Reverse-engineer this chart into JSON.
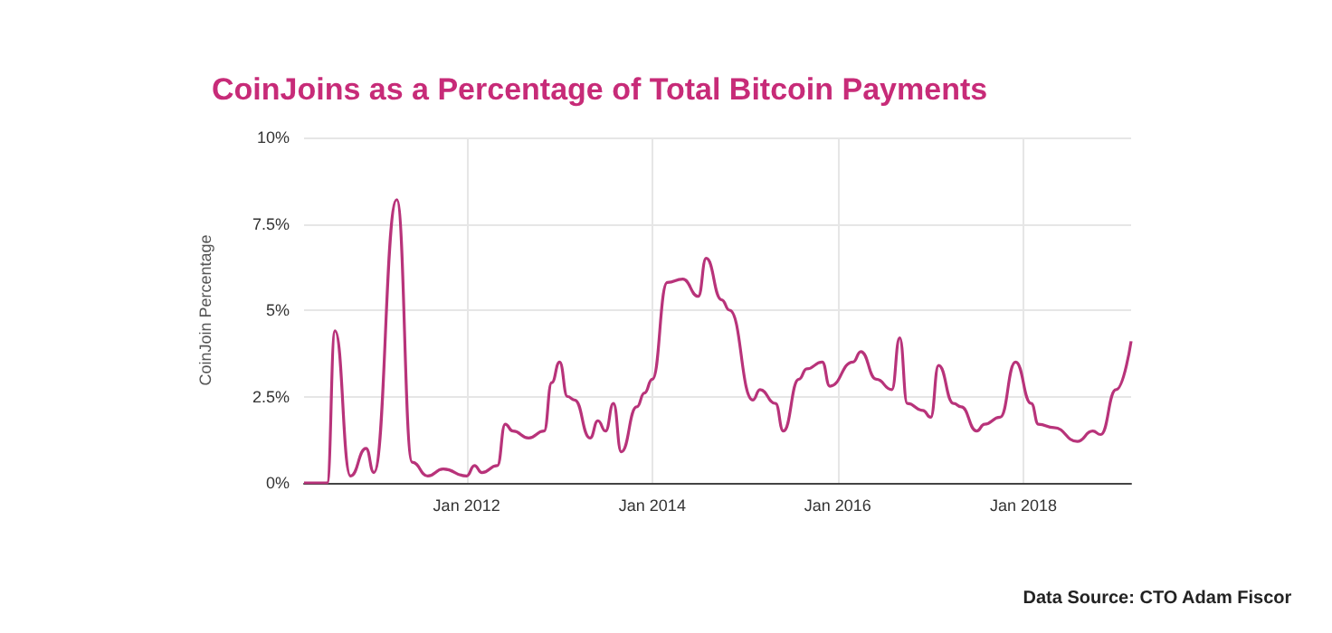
{
  "chart_data": {
    "type": "line",
    "title": "CoinJoins as a Percentage of Total Bitcoin Payments",
    "ylabel": "CoinJoin Percentage",
    "x": [
      "2010-04",
      "2010-07",
      "2010-08",
      "2010-10",
      "2010-12",
      "2011-01",
      "2011-04",
      "2011-06",
      "2011-08",
      "2011-10",
      "2012-01",
      "2012-02",
      "2012-03",
      "2012-05",
      "2012-06",
      "2012-07",
      "2012-09",
      "2012-11",
      "2012-12",
      "2013-01",
      "2013-02",
      "2013-03",
      "2013-05",
      "2013-06",
      "2013-07",
      "2013-08",
      "2013-09",
      "2013-11",
      "2013-12",
      "2014-01",
      "2014-03",
      "2014-05",
      "2014-07",
      "2014-08",
      "2014-10",
      "2014-11",
      "2015-02",
      "2015-03",
      "2015-05",
      "2015-06",
      "2015-08",
      "2015-09",
      "2015-11",
      "2015-12",
      "2016-03",
      "2016-04",
      "2016-06",
      "2016-08",
      "2016-09",
      "2016-10",
      "2016-12",
      "2017-01",
      "2017-02",
      "2017-04",
      "2017-05",
      "2017-07",
      "2017-08",
      "2017-10",
      "2017-12",
      "2018-02",
      "2018-03",
      "2018-05",
      "2018-08",
      "2018-10",
      "2018-11",
      "2019-01",
      "2019-03"
    ],
    "series": [
      {
        "color": "#b8337a",
        "values": [
          0,
          0,
          4.4,
          0.2,
          1.0,
          0.3,
          8.2,
          0.6,
          0.2,
          0.4,
          0.2,
          0.5,
          0.3,
          0.5,
          1.7,
          1.5,
          1.3,
          1.5,
          2.9,
          3.5,
          2.5,
          2.4,
          1.3,
          1.8,
          1.5,
          2.3,
          0.9,
          2.2,
          2.6,
          3.0,
          5.8,
          5.9,
          5.4,
          6.5,
          5.3,
          5.0,
          2.4,
          2.7,
          2.3,
          1.5,
          3.0,
          3.3,
          3.5,
          2.8,
          3.5,
          3.8,
          3.0,
          2.7,
          4.2,
          2.3,
          2.1,
          1.9,
          3.4,
          2.3,
          2.2,
          1.5,
          1.7,
          1.9,
          3.5,
          2.3,
          1.7,
          1.6,
          1.2,
          1.5,
          1.4,
          2.7,
          4.1
        ]
      }
    ],
    "xlim": [
      "2010-04",
      "2019-03"
    ],
    "xticks": [
      {
        "value": "2012-01",
        "label": "Jan 2012"
      },
      {
        "value": "2014-01",
        "label": "Jan 2014"
      },
      {
        "value": "2016-01",
        "label": "Jan 2016"
      },
      {
        "value": "2018-01",
        "label": "Jan 2018"
      }
    ],
    "ylim": [
      0,
      10
    ],
    "yticks": [
      {
        "value": 0,
        "label": "0%"
      },
      {
        "value": 2.5,
        "label": "2.5%"
      },
      {
        "value": 5,
        "label": "5%"
      },
      {
        "value": 7.5,
        "label": "7.5%"
      },
      {
        "value": 10,
        "label": "10%"
      }
    ],
    "grid": true,
    "marker": "none",
    "line_style": "solid",
    "annotations": [
      "Data Source: CTO Adam Fiscor"
    ]
  }
}
